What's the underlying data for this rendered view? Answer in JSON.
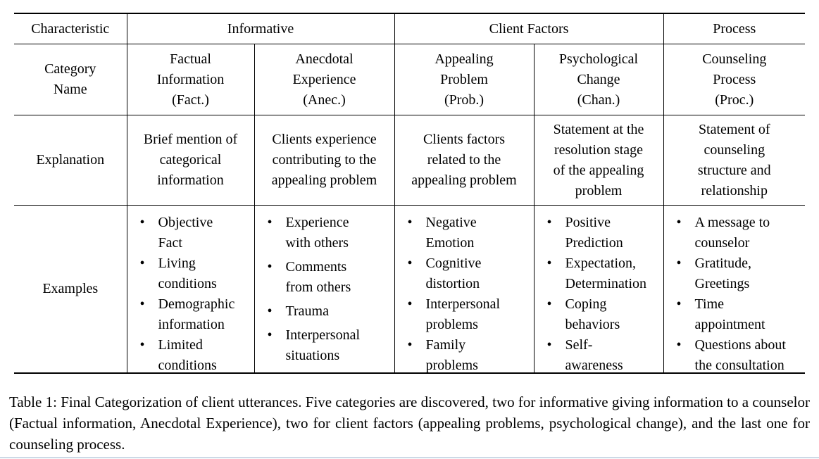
{
  "table": {
    "bullet": "•",
    "corner_label": "Characteristic",
    "groups": [
      {
        "label": "Informative",
        "span": 2
      },
      {
        "label": "Client Factors",
        "span": 2
      },
      {
        "label": "Process",
        "span": 1
      }
    ],
    "row_labels": {
      "category": "Category\nName",
      "explanation": "Explanation",
      "examples": "Examples"
    },
    "columns": [
      {
        "name": "Factual\nInformation\n(Fact.)",
        "explanation": "Brief mention of\ncategorical\ninformation",
        "examples": [
          "Objective\nFact",
          "Living\nconditions",
          "Demographic\ninformation",
          "Limited\nconditions"
        ]
      },
      {
        "name": "Anecdotal\nExperience\n(Anec.)",
        "explanation": "Clients experience\ncontributing to the\nappealing problem",
        "examples": [
          "Experience\nwith others",
          "Comments\nfrom others",
          "Trauma",
          "Interpersonal\nsituations"
        ]
      },
      {
        "name": "Appealing\nProblem\n(Prob.)",
        "explanation": "Clients factors\nrelated to the\nappealing problem",
        "examples": [
          "Negative\nEmotion",
          "Cognitive\ndistortion",
          "Interpersonal\nproblems",
          "Family\nproblems"
        ]
      },
      {
        "name": "Psychological\nChange\n(Chan.)",
        "explanation": "Statement at the\nresolution stage\nof the appealing\nproblem",
        "examples": [
          "Positive\nPrediction",
          "Expectation,\nDetermination",
          "Coping\nbehaviors",
          "Self-\nawareness"
        ]
      },
      {
        "name": "Counseling\nProcess\n(Proc.)",
        "explanation": "Statement of\ncounseling\nstructure and\nrelationship",
        "examples": [
          "A message to\ncounselor",
          "Gratitude,\nGreetings",
          "Time\nappointment",
          "Questions about\nthe consultation"
        ]
      }
    ]
  },
  "caption": "Table 1: Final Categorization of client utterances. Five categories are discovered, two for informative giving information to a counselor (Factual information, Anecdotal Experience), two for client factors (appealing problems, psychological change), and the last one for counseling process."
}
